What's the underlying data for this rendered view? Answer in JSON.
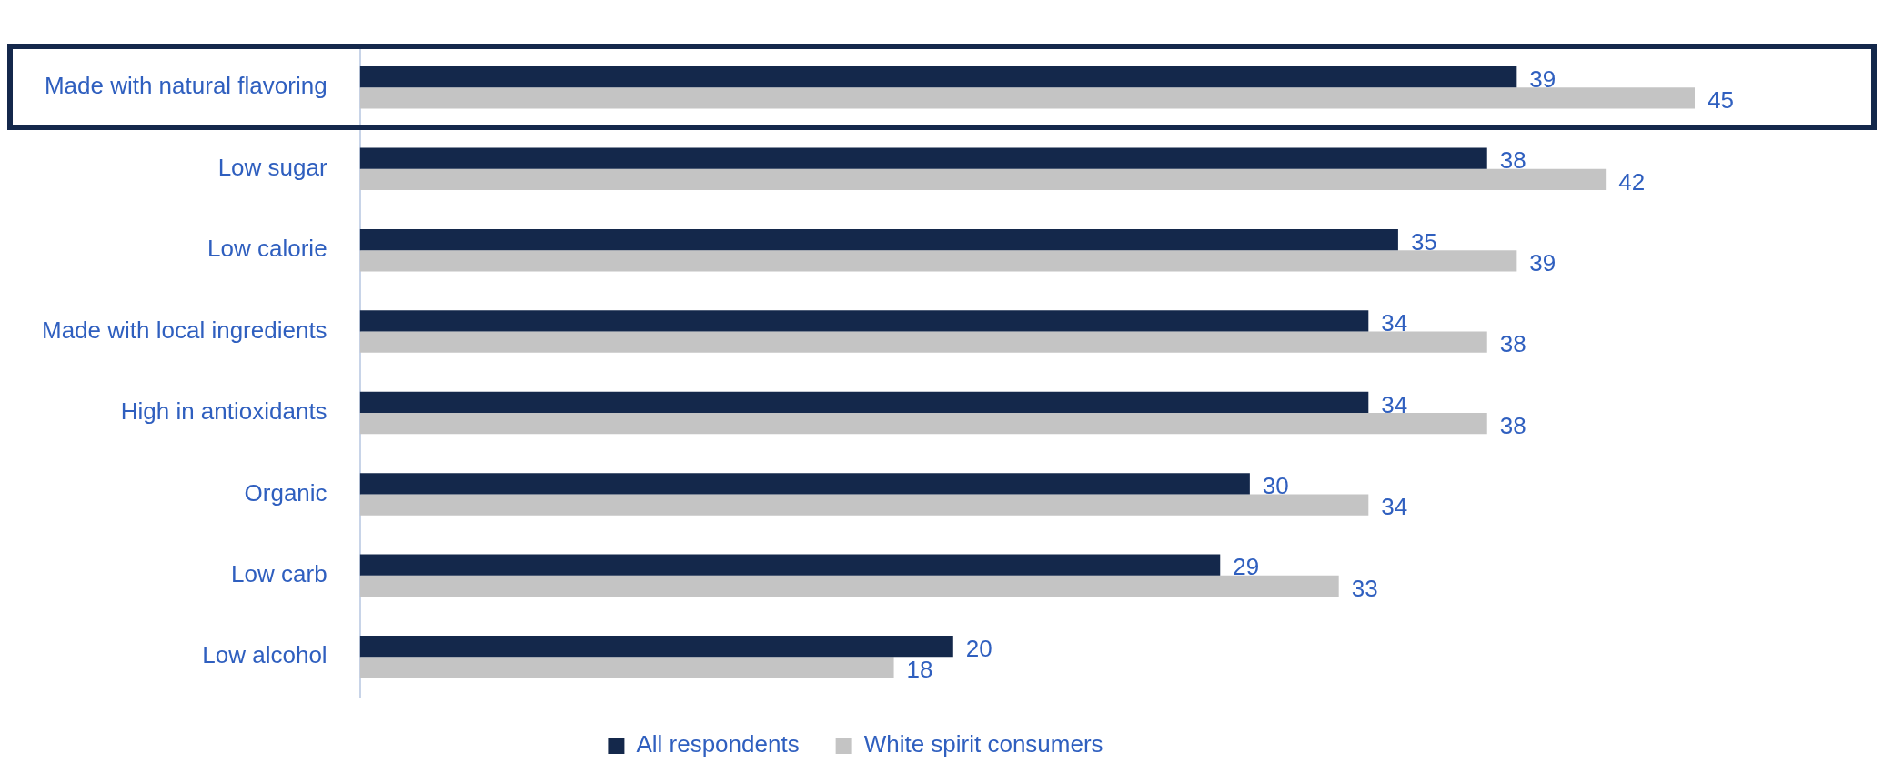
{
  "chart_data": {
    "type": "bar",
    "orientation": "horizontal",
    "categories": [
      "Made with natural flavoring",
      "Low sugar",
      "Low calorie",
      "Made with local ingredients",
      "High in antioxidants",
      "Organic",
      "Low carb",
      "Low alcohol"
    ],
    "series": [
      {
        "name": "All respondents",
        "color": "#14284b",
        "values": [
          39,
          38,
          35,
          34,
          34,
          30,
          29,
          20
        ]
      },
      {
        "name": "White spirit consumers",
        "color": "#c4c4c4",
        "values": [
          45,
          42,
          39,
          38,
          38,
          34,
          33,
          18
        ]
      }
    ],
    "data_labels": true,
    "legend": "bottom"
  }
}
